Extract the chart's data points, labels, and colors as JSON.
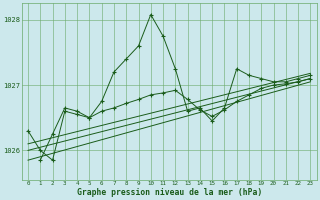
{
  "title": "Graphe pression niveau de la mer (hPa)",
  "background_color": "#cce8ec",
  "grid_color": "#6aaa6a",
  "line_color": "#1a5c1a",
  "marker_color": "#1a5c1a",
  "xlim": [
    -0.5,
    23.5
  ],
  "ylim": [
    1025.55,
    1028.25
  ],
  "yticks": [
    1026,
    1027,
    1028
  ],
  "xticks": [
    0,
    1,
    2,
    3,
    4,
    5,
    6,
    7,
    8,
    9,
    10,
    11,
    12,
    13,
    14,
    15,
    16,
    17,
    18,
    19,
    20,
    21,
    22,
    23
  ],
  "lines": [
    {
      "x": [
        0,
        1,
        2,
        3,
        4,
        5,
        6,
        7,
        8,
        9,
        10,
        11,
        12,
        13,
        14,
        15,
        16,
        17,
        18,
        19,
        20,
        21,
        22,
        23
      ],
      "y": [
        1026.3,
        1026.0,
        1025.85,
        1026.6,
        1026.55,
        1026.5,
        1026.75,
        1027.2,
        1027.4,
        1027.6,
        1028.08,
        1027.75,
        1027.25,
        1026.6,
        1026.65,
        1026.45,
        1026.65,
        1027.25,
        1027.15,
        1027.1,
        1027.05,
        1027.05,
        1027.1,
        1027.15
      ],
      "no_markers": false
    },
    {
      "x": [
        1,
        2,
        3,
        4,
        5,
        6,
        7,
        8,
        9,
        10,
        11,
        12,
        13,
        14,
        15,
        16,
        17,
        18,
        19,
        20,
        21,
        22,
        23
      ],
      "y": [
        1025.85,
        1026.25,
        1026.65,
        1026.6,
        1026.5,
        1026.6,
        1026.65,
        1026.72,
        1026.78,
        1026.85,
        1026.88,
        1026.92,
        1026.78,
        1026.62,
        1026.52,
        1026.62,
        1026.75,
        1026.85,
        1026.95,
        1027.0,
        1027.02,
        1027.05,
        1027.1
      ],
      "no_markers": false
    },
    {
      "x": [
        0,
        23
      ],
      "y": [
        1025.85,
        1027.05
      ],
      "no_markers": true
    },
    {
      "x": [
        0,
        23
      ],
      "y": [
        1026.0,
        1027.1
      ],
      "no_markers": true
    },
    {
      "x": [
        0,
        23
      ],
      "y": [
        1026.1,
        1027.18
      ],
      "no_markers": true
    }
  ]
}
